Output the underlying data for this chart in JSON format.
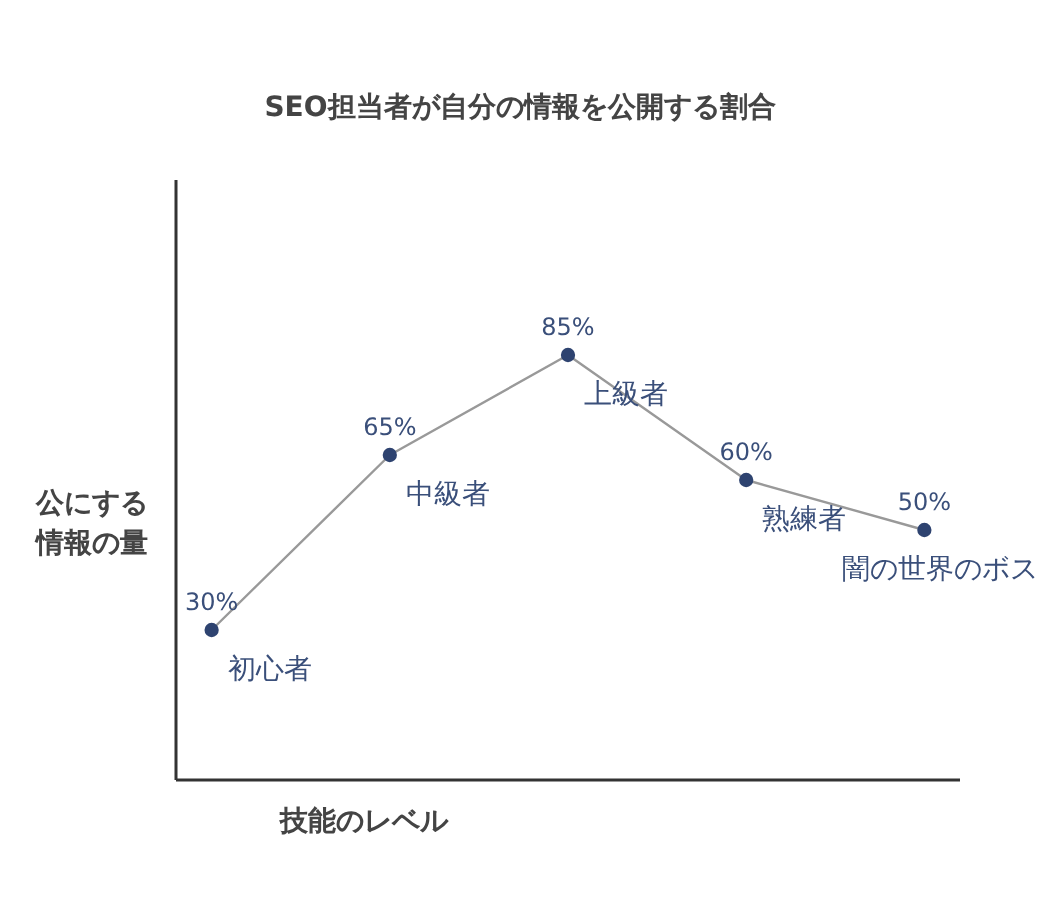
{
  "chart_data": {
    "type": "line",
    "title": "SEO担当者が自分の情報を公開する割合",
    "xlabel": "技能のレベル",
    "ylabel": "公にする情報の量",
    "categories": [
      null,
      null,
      null,
      null,
      null
    ],
    "series": [
      {
        "color": "#999999",
        "colors": [
          "#2e4370",
          "#2e4370",
          "#2e4370",
          "#2e4370",
          "#2e4370"
        ],
        "values": [
          30,
          65,
          85,
          60,
          50
        ],
        "value_labels": [
          "30%",
          "65%",
          "85%",
          "60%",
          "50%"
        ]
      }
    ],
    "annotations": [
      "初心者",
      "中級者",
      "上級者",
      "熟練者",
      "闇の世界のボス"
    ],
    "ylim": [
      0,
      120
    ],
    "marker": "circle",
    "tick_labels": false
  }
}
